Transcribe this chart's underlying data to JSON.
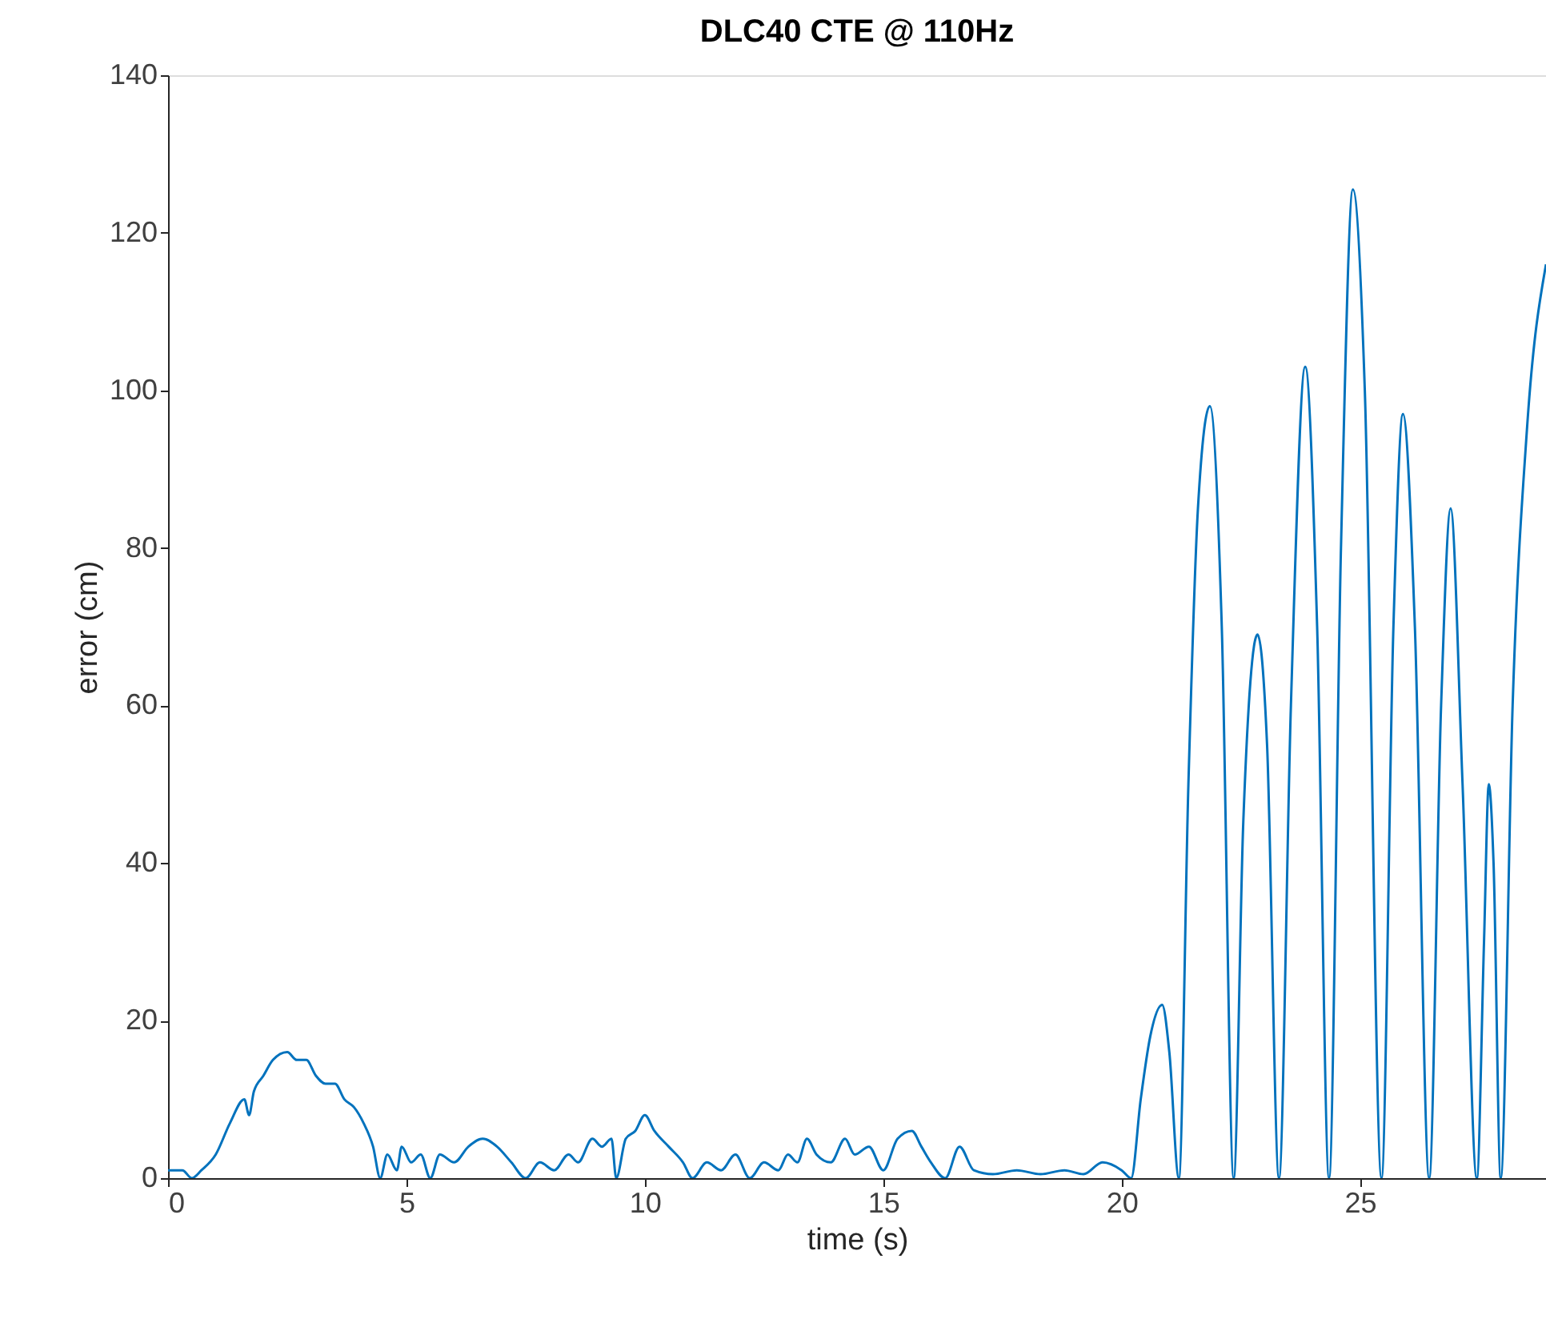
{
  "chart_data": {
    "type": "line",
    "title": "DLC40 CTE @ 110Hz",
    "xlabel": "time (s)",
    "ylabel": "error (cm)",
    "xlim": [
      0,
      28.9
    ],
    "ylim": [
      0,
      140
    ],
    "xticks": [
      0,
      5,
      10,
      15,
      20,
      25
    ],
    "yticks": [
      0,
      20,
      40,
      60,
      80,
      100,
      120,
      140
    ],
    "grid": false,
    "series": [
      {
        "color": "#0072bd",
        "x": [
          0,
          0.3,
          0.5,
          0.7,
          1.0,
          1.3,
          1.6,
          1.7,
          1.8,
          2.0,
          2.2,
          2.5,
          2.7,
          2.9,
          3.1,
          3.3,
          3.5,
          3.7,
          3.9,
          4.1,
          4.3,
          4.45,
          4.6,
          4.8,
          4.9,
          5.1,
          5.3,
          5.5,
          5.7,
          6.0,
          6.3,
          6.6,
          6.9,
          7.2,
          7.5,
          7.8,
          8.1,
          8.4,
          8.6,
          8.9,
          9.1,
          9.3,
          9.4,
          9.6,
          9.8,
          10.0,
          10.2,
          10.5,
          10.8,
          11.0,
          11.3,
          11.6,
          11.9,
          12.2,
          12.5,
          12.8,
          13.0,
          13.2,
          13.4,
          13.6,
          13.9,
          14.2,
          14.4,
          14.7,
          15.0,
          15.3,
          15.6,
          15.8,
          16.0,
          16.3,
          16.6,
          16.9,
          17.3,
          17.8,
          18.3,
          18.8,
          19.2,
          19.6,
          20.0,
          20.2,
          20.4,
          20.6,
          20.85,
          21.0,
          21.2,
          21.4,
          21.6,
          21.85,
          22.1,
          22.35,
          22.55,
          22.85,
          23.05,
          23.3,
          23.55,
          23.85,
          24.1,
          24.35,
          24.6,
          24.85,
          25.1,
          25.45,
          25.7,
          25.9,
          26.15,
          26.45,
          26.7,
          26.9,
          27.15,
          27.45,
          27.6,
          27.7,
          27.8,
          27.95,
          28.2,
          28.5,
          28.9
        ],
        "values": [
          1,
          1,
          0,
          1,
          3,
          7,
          10,
          8,
          11,
          13,
          15,
          16,
          15,
          15,
          13,
          12,
          12,
          10,
          9,
          7,
          4,
          0,
          3,
          1,
          4,
          2,
          3,
          0,
          3,
          2,
          4,
          5,
          4,
          2,
          0,
          2,
          1,
          3,
          2,
          5,
          4,
          5,
          0,
          5,
          6,
          8,
          6,
          4,
          2,
          0,
          2,
          1,
          3,
          0,
          2,
          1,
          3,
          2,
          5,
          3,
          2,
          5,
          3,
          4,
          1,
          5,
          6,
          4,
          2,
          0,
          4,
          1,
          0.5,
          1,
          0.5,
          1,
          0.5,
          2,
          1,
          0,
          10,
          18,
          22,
          16,
          0,
          50,
          85,
          98,
          70,
          0,
          45,
          69,
          55,
          0,
          60,
          103,
          70,
          0,
          80,
          125.5,
          100,
          0,
          70,
          97,
          70,
          0,
          60,
          85,
          50,
          0,
          30,
          50,
          40,
          0,
          60,
          95,
          116
        ]
      }
    ]
  }
}
